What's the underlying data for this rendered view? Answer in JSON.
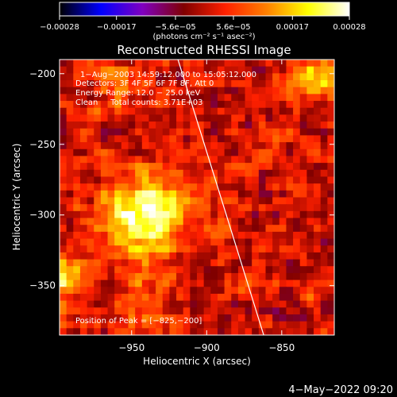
{
  "chart_data": {
    "type": "heatmap",
    "title": "Reconstructed RHESSI Image",
    "xlabel": "Heliocentric X (arcsec)",
    "ylabel": "Heliocentric Y (arcsec)",
    "xlim": [
      -998,
      -815
    ],
    "ylim": [
      -385,
      -190
    ],
    "x_ticks": [
      {
        "value": -950,
        "label": "−950"
      },
      {
        "value": -900,
        "label": "−900"
      },
      {
        "value": -850,
        "label": "−850"
      }
    ],
    "y_ticks": [
      {
        "value": -200,
        "label": "−200"
      },
      {
        "value": -250,
        "label": "−250"
      },
      {
        "value": -300,
        "label": "−300"
      },
      {
        "value": -350,
        "label": "−350"
      }
    ],
    "colorbar": {
      "min": -0.00028,
      "max": 0.00028,
      "tick_values": [
        -0.00028,
        -0.00017,
        -5.6e-05,
        5.6e-05,
        0.00017,
        0.00028
      ],
      "tick_labels": [
        "−0.00028",
        "−0.00017",
        "−5.6e−05",
        "5.6e−05",
        "0.00017",
        "0.00028"
      ],
      "unit_label": "(photons cm⁻² s⁻¹ asec⁻²)"
    },
    "annotations": [
      "1−Aug−2003 14:59:12.000 to 15:05:12.000",
      "Detectors: 3F 4F 5F 6F 7F 8F, Att 0",
      "Energy Range: 12.0 − 25.0 keV",
      "Clean     Total counts: 3.71E+03"
    ],
    "peak_label": "Position of Peak = [−825,−200]",
    "peak": [
      -825,
      -200
    ],
    "limb_line": [
      [
        -920,
        -187
      ],
      [
        -862,
        -385
      ]
    ],
    "sources": [
      {
        "x": -940,
        "y": -300,
        "sigma": 20,
        "amp": 0.00026
      },
      {
        "x": -998,
        "y": -345,
        "sigma": 12,
        "amp": 0.00021
      },
      {
        "x": -828,
        "y": -203,
        "sigma": 10,
        "amp": 0.00022
      },
      {
        "x": -960,
        "y": -208,
        "sigma": 10,
        "amp": 9e-05
      },
      {
        "x": -945,
        "y": -360,
        "sigma": 16,
        "amp": 7e-05
      }
    ],
    "colors": [
      "#000000",
      "#0000ff",
      "#8000c0",
      "#800000",
      "#ff2000",
      "#ff8000",
      "#ffff00",
      "#ffffff"
    ]
  },
  "footer_date": "4−May−2022 09:20"
}
